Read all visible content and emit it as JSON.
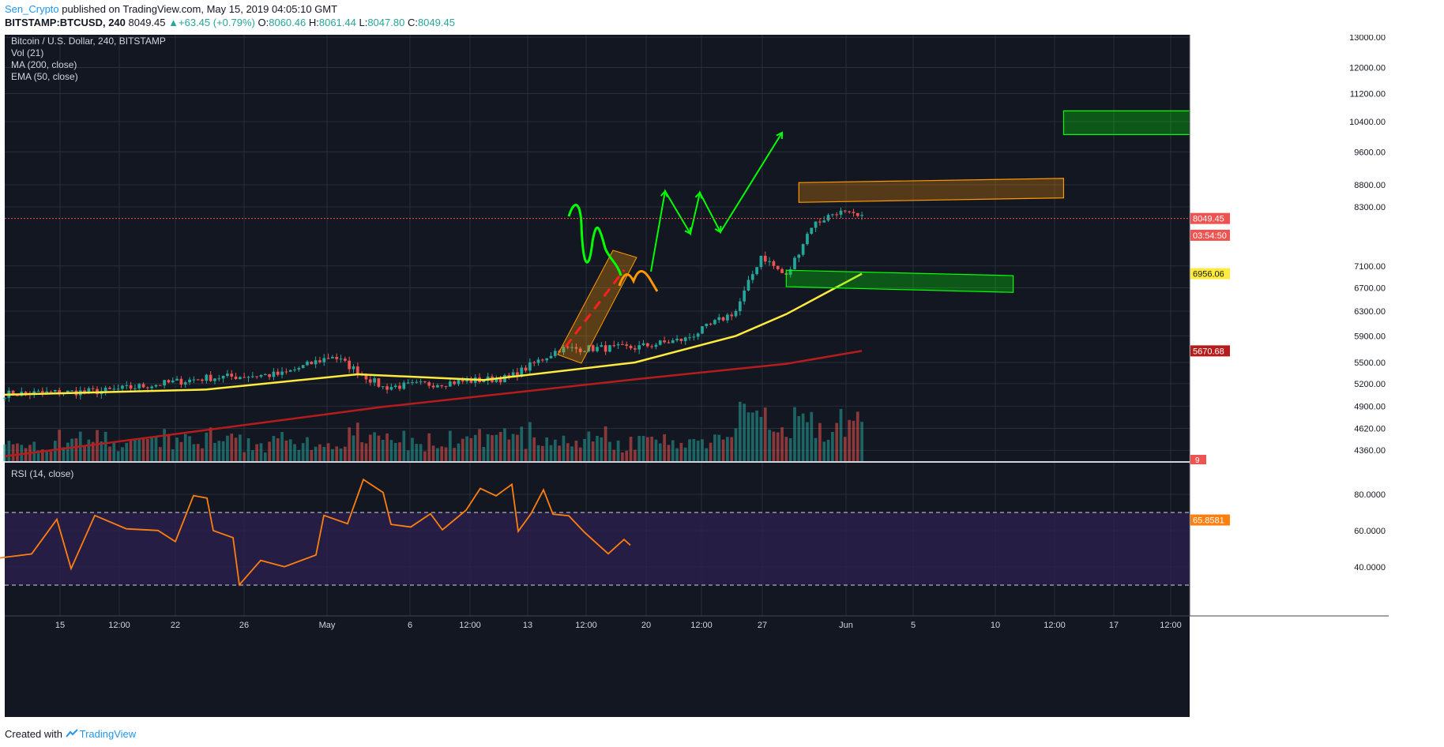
{
  "header": {
    "author": "Sen_Crypto",
    "published_text": " published on TradingView.com, May 15, 2019 04:05:10 GMT",
    "symbol": "BITSTAMP:BTCUSD, 240",
    "last_price": "8049.45",
    "change_arrow": "▲",
    "change": "+63.45 (+0.79%)",
    "open_label": "O:",
    "open": "8060.46",
    "high_label": "H:",
    "high": "8061.44",
    "low_label": "L:",
    "low": "8047.80",
    "close_label": "C:",
    "close": "8049.45"
  },
  "legend": {
    "title": "Bitcoin / U.S. Dollar, 240, BITSTAMP",
    "vol": "Vol (21)",
    "ma": "MA (200, close)",
    "ema": "EMA (50, close)",
    "rsi": "RSI (14, close)"
  },
  "footer": {
    "created_with": "Created with",
    "brand": "TradingView",
    "logo_icon": "tradingview-logo-icon"
  },
  "colors": {
    "background": "#131722",
    "grid": "#2a2e39",
    "up_candle": "#26a69a",
    "down_candle": "#ef5350",
    "ma200": "#b71c1c",
    "ema50": "#ffeb3b",
    "rsi": "#ff7f0e",
    "rsi_band": "#2a1f4a",
    "drawing_green": "#00ff00",
    "drawing_orange": "#ff9800",
    "drawing_red": "#ff1f1f"
  },
  "chart_data": [
    {
      "type": "candlestick",
      "y_scale": "log",
      "y_ticks": [
        "13000.00",
        "12000.00",
        "11200.00",
        "10400.00",
        "9600.00",
        "8800.00",
        "8300.00",
        "7100.00",
        "6700.00",
        "6300.00",
        "5900.00",
        "5500.00",
        "5200.00",
        "4900.00",
        "4620.00",
        "4360.00"
      ],
      "x_ticks": [
        "15",
        "12:00",
        "22",
        "26",
        "May",
        "6",
        "12:00",
        "13",
        "12:00",
        "20",
        "12:00",
        "27",
        "Jun",
        "5",
        "10",
        "12:00",
        "17",
        "12:00"
      ],
      "price_labels": [
        {
          "value": 8049.45,
          "text": "8049.45",
          "color": "#ef5350"
        },
        {
          "value": 7700,
          "text": "03:54:50",
          "color": "#ef5350"
        },
        {
          "value": 6956.06,
          "text": "6956.06",
          "color": "#ffeb3b"
        },
        {
          "value": 5670.68,
          "text": "5670.68",
          "color": "#b71c1c"
        }
      ],
      "volume_label": "9",
      "series": [
        {
          "name": "MA (200, close)",
          "kind": "line"
        },
        {
          "name": "EMA (50, close)",
          "kind": "line"
        },
        {
          "name": "Vol (21)",
          "kind": "bar"
        }
      ],
      "ohlc_anchors": {
        "dates": [
          "2019-04-11",
          "2019-04-15",
          "2019-04-19",
          "2019-04-22",
          "2019-04-24",
          "2019-04-26",
          "2019-04-28",
          "2019-05-01",
          "2019-05-03",
          "2019-05-06",
          "2019-05-08",
          "2019-05-10",
          "2019-05-11",
          "2019-05-12",
          "2019-05-13",
          "2019-05-14",
          "2019-05-15"
        ],
        "close": [
          5060,
          5100,
          5280,
          5330,
          5600,
          5150,
          5200,
          5280,
          5700,
          5720,
          5850,
          6300,
          7300,
          6900,
          7900,
          8200,
          8049
        ]
      },
      "ma200": {
        "dates": [
          "2019-04-11",
          "2019-04-26",
          "2019-05-06",
          "2019-05-12",
          "2019-05-15"
        ],
        "values": [
          4290,
          4890,
          5260,
          5480,
          5670.68
        ]
      },
      "ema50": {
        "dates": [
          "2019-04-11",
          "2019-04-19",
          "2019-04-25",
          "2019-04-30",
          "2019-05-06",
          "2019-05-10",
          "2019-05-12",
          "2019-05-15"
        ],
        "values": [
          5050,
          5120,
          5330,
          5250,
          5500,
          5900,
          6250,
          6956.06
        ]
      },
      "annotations": [
        {
          "kind": "box",
          "color": "#ff9800",
          "from": "2019-05-12 12:00",
          "to": "2019-05-23",
          "price_left": [
            8400,
            8850
          ],
          "price_right": [
            8500,
            8950
          ]
        },
        {
          "kind": "box",
          "color": "#00ff00",
          "from": "2019-05-12",
          "to": "2019-05-21",
          "price_left": [
            6720,
            7020
          ],
          "price_right": [
            6620,
            6920
          ]
        },
        {
          "kind": "box",
          "color": "#00ff00",
          "from": "2019-05-23",
          "to": "2019-05-31",
          "price_left": [
            10050,
            10700
          ],
          "price_right": [
            10050,
            10700
          ]
        },
        {
          "kind": "channel",
          "color": "#ff9800"
        }
      ]
    },
    {
      "type": "line",
      "name": "RSI (14, close)",
      "y_ticks": [
        "80.0000",
        "60.0000",
        "40.0000"
      ],
      "ylim": [
        25,
        90
      ],
      "bands": [
        30,
        70
      ],
      "last_value": 65.8581,
      "last_label": "65.8581"
    }
  ]
}
